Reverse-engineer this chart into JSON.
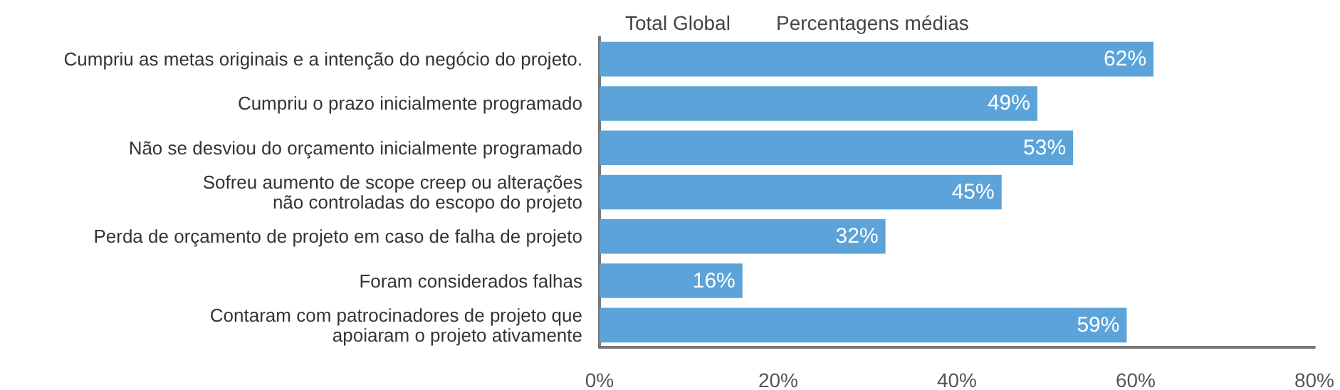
{
  "chart_data": {
    "type": "bar",
    "orientation": "horizontal",
    "title": "Total Global",
    "subtitle": "Percentagens médias",
    "categories": [
      "Cumpriu as metas originais e a intenção do negócio do projeto.",
      "Cumpriu o prazo inicialmente programado",
      "Não se desviou do orçamento inicialmente programado",
      "Sofreu aumento de scope creep ou alterações\nnão controladas do escopo do projeto",
      "Perda de orçamento de projeto em caso de falha de projeto",
      "Foram considerados falhas",
      "Contaram com patrocinadores de projeto que\napoiaram o projeto ativamente"
    ],
    "values": [
      62,
      49,
      53,
      45,
      32,
      16,
      59
    ],
    "value_labels": [
      "62%",
      "49%",
      "53%",
      "45%",
      "32%",
      "16%",
      "59%"
    ],
    "color": "#5ba3d9",
    "xlim": [
      0,
      80
    ],
    "xticks": [
      {
        "value": 0,
        "label": "0%"
      },
      {
        "value": 20,
        "label": "20%"
      },
      {
        "value": 40,
        "label": "40%"
      },
      {
        "value": 60,
        "label": "60%"
      },
      {
        "value": 80,
        "label": "80%"
      }
    ],
    "grid": false
  }
}
